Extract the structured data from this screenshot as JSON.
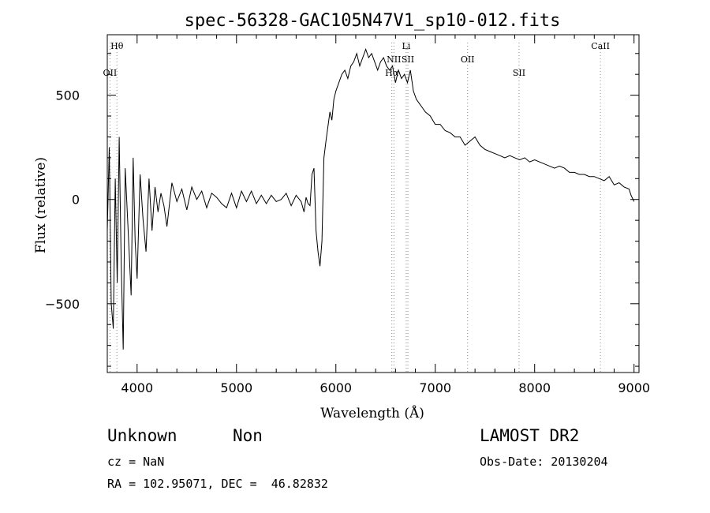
{
  "chart_data": {
    "type": "line",
    "title": "spec-56328-GAC105N47V1_sp10-012.fits",
    "xlabel": "Wavelength (Å)",
    "ylabel": "Flux (relative)",
    "xlim": [
      3700,
      9050
    ],
    "ylim": [
      -830,
      790
    ],
    "xticks": [
      4000,
      5000,
      6000,
      7000,
      8000,
      9000
    ],
    "yticks": [
      -500,
      0,
      500
    ],
    "grid": false,
    "line_color": "#000000",
    "marker_color": "#888888",
    "series": [
      {
        "x": [
          3700,
          3720,
          3740,
          3760,
          3780,
          3800,
          3820,
          3840,
          3860,
          3880,
          3900,
          3920,
          3940,
          3960,
          3980,
          4000,
          4030,
          4060,
          4090,
          4120,
          4150,
          4180,
          4210,
          4240,
          4270,
          4300,
          4350,
          4400,
          4450,
          4500,
          4550,
          4600,
          4650,
          4700,
          4750,
          4800,
          4850,
          4900,
          4950,
          5000,
          5050,
          5100,
          5150,
          5200,
          5250,
          5300,
          5350,
          5400,
          5450,
          5500,
          5550,
          5600,
          5650,
          5680,
          5700,
          5720,
          5740,
          5760,
          5780,
          5800,
          5820,
          5840,
          5860,
          5880,
          5900,
          5920,
          5940,
          5960,
          5980,
          6000,
          6030,
          6060,
          6090,
          6120,
          6150,
          6180,
          6210,
          6240,
          6270,
          6300,
          6330,
          6360,
          6390,
          6420,
          6450,
          6480,
          6510,
          6540,
          6570,
          6600,
          6630,
          6660,
          6690,
          6720,
          6750,
          6780,
          6810,
          6840,
          6870,
          6900,
          6950,
          7000,
          7050,
          7100,
          7150,
          7200,
          7250,
          7300,
          7350,
          7400,
          7450,
          7500,
          7550,
          7600,
          7650,
          7700,
          7750,
          7800,
          7850,
          7900,
          7950,
          8000,
          8050,
          8100,
          8150,
          8200,
          8250,
          8300,
          8350,
          8400,
          8450,
          8500,
          8550,
          8600,
          8650,
          8700,
          8750,
          8800,
          8850,
          8900,
          8950,
          8970,
          9000
        ],
        "y": [
          -150,
          250,
          -500,
          -620,
          100,
          -400,
          300,
          -300,
          -720,
          150,
          -50,
          -250,
          -460,
          200,
          -200,
          -380,
          120,
          -100,
          -250,
          100,
          -150,
          60,
          -60,
          30,
          -30,
          -130,
          80,
          -10,
          50,
          -50,
          60,
          0,
          40,
          -40,
          30,
          10,
          -20,
          -40,
          30,
          -40,
          40,
          -10,
          40,
          -20,
          20,
          -20,
          20,
          -10,
          0,
          30,
          -30,
          20,
          -10,
          -60,
          10,
          -20,
          -30,
          120,
          150,
          -150,
          -250,
          -320,
          -200,
          200,
          280,
          350,
          420,
          380,
          480,
          520,
          560,
          600,
          620,
          580,
          640,
          660,
          700,
          640,
          680,
          720,
          680,
          700,
          660,
          620,
          660,
          680,
          640,
          620,
          640,
          560,
          620,
          580,
          600,
          560,
          620,
          520,
          480,
          460,
          440,
          420,
          400,
          360,
          360,
          330,
          320,
          300,
          300,
          260,
          280,
          300,
          260,
          240,
          230,
          220,
          210,
          200,
          210,
          200,
          190,
          200,
          180,
          190,
          180,
          170,
          160,
          150,
          160,
          150,
          130,
          130,
          120,
          120,
          110,
          110,
          100,
          90,
          110,
          70,
          80,
          60,
          50,
          20,
          -10
        ]
      }
    ],
    "line_markers": [
      {
        "label": "Hθ",
        "x": 3797,
        "row": "top"
      },
      {
        "label": "OII",
        "x": 3727,
        "row": "low"
      },
      {
        "label": "Hα",
        "x": 6563,
        "row": "low"
      },
      {
        "label": "NII",
        "x": 6584,
        "row": "mid"
      },
      {
        "label": "Li",
        "x": 6708,
        "row": "top"
      },
      {
        "label": "SII",
        "x": 6724,
        "row": "mid"
      },
      {
        "label": "OII",
        "x": 7325,
        "row": "mid"
      },
      {
        "label": "SII",
        "x": 7843,
        "row": "low"
      },
      {
        "label": "CaII",
        "x": 8662,
        "row": "top"
      }
    ]
  },
  "info": {
    "class": "Unknown",
    "subclass": "Non",
    "survey": "LAMOST DR2",
    "cz": "cz = NaN",
    "obs_date": "Obs-Date: 20130204",
    "coords": "RA = 102.95071, DEC =  46.82832"
  }
}
